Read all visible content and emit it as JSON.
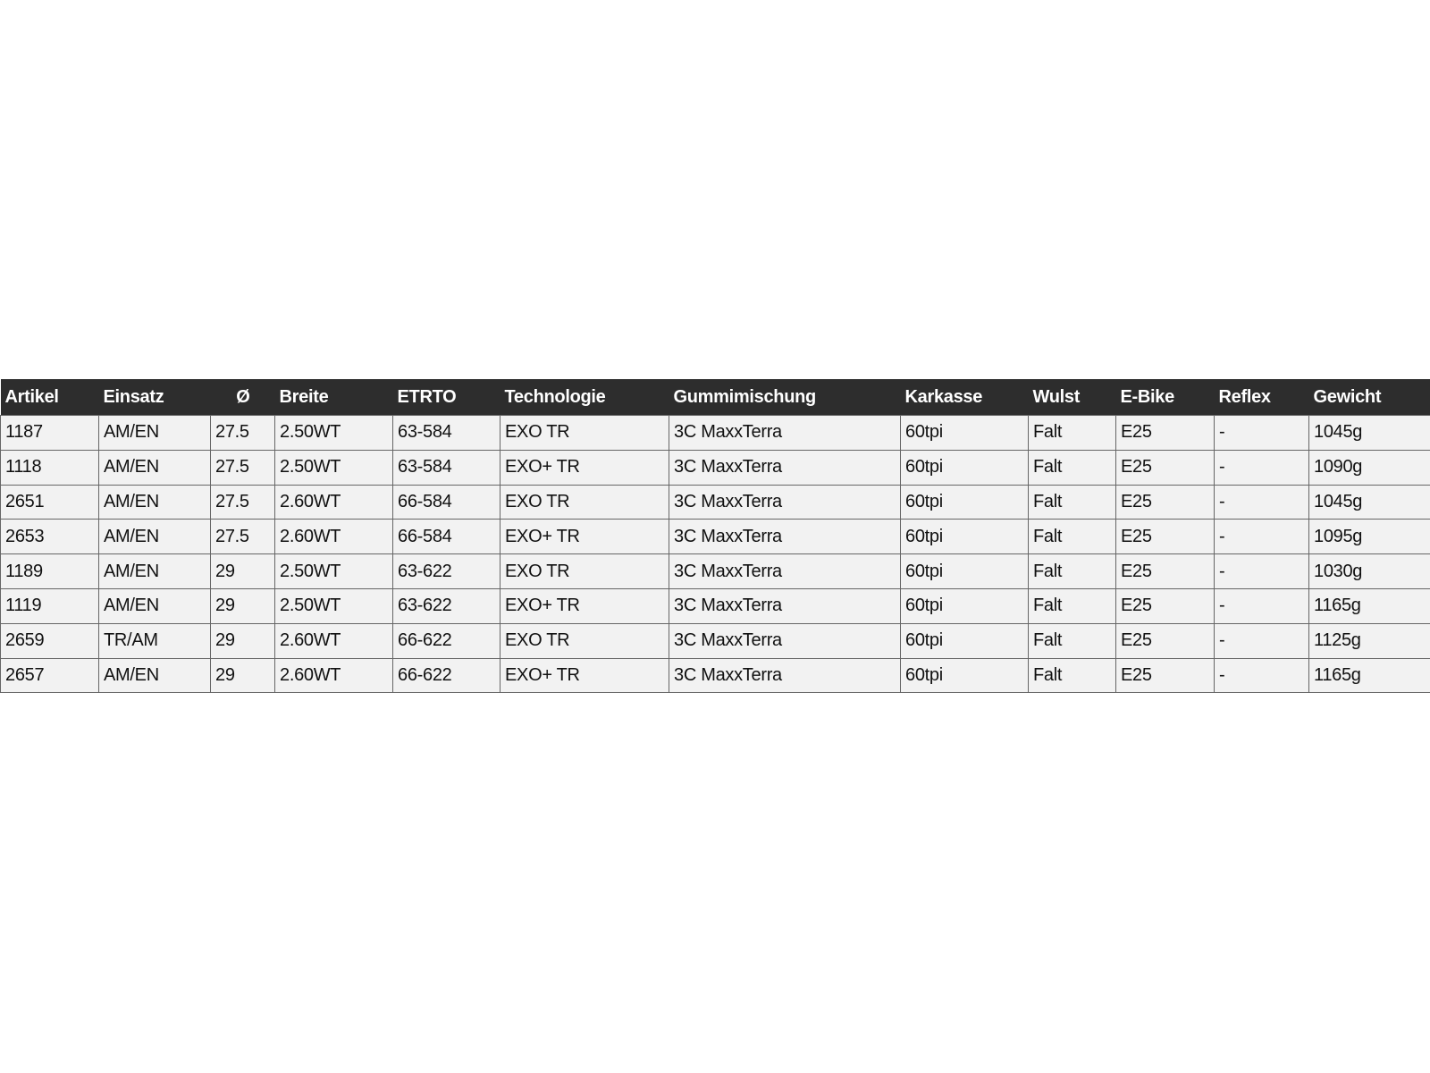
{
  "table": {
    "headers": [
      "Artikel",
      "Einsatz",
      "Ø",
      "Breite",
      "ETRTO",
      "Technologie",
      "Gummimischung",
      "Karkasse",
      "Wulst",
      "E-Bike",
      "Reflex",
      "Gewicht"
    ],
    "rows": [
      [
        "1187",
        "AM/EN",
        "27.5",
        "2.50WT",
        "63-584",
        "EXO TR",
        "3C MaxxTerra",
        "60tpi",
        "Falt",
        "E25",
        "-",
        "1045g"
      ],
      [
        "1118",
        "AM/EN",
        "27.5",
        "2.50WT",
        "63-584",
        "EXO+ TR",
        "3C MaxxTerra",
        "60tpi",
        "Falt",
        "E25",
        "-",
        "1090g"
      ],
      [
        "2651",
        "AM/EN",
        "27.5",
        "2.60WT",
        "66-584",
        "EXO TR",
        "3C MaxxTerra",
        "60tpi",
        "Falt",
        "E25",
        "-",
        "1045g"
      ],
      [
        "2653",
        "AM/EN",
        "27.5",
        "2.60WT",
        "66-584",
        "EXO+ TR",
        "3C MaxxTerra",
        "60tpi",
        "Falt",
        "E25",
        "-",
        "1095g"
      ],
      [
        "1189",
        "AM/EN",
        "29",
        "2.50WT",
        "63-622",
        "EXO TR",
        "3C MaxxTerra",
        "60tpi",
        "Falt",
        "E25",
        "-",
        "1030g"
      ],
      [
        "1119",
        "AM/EN",
        "29",
        "2.50WT",
        "63-622",
        "EXO+ TR",
        "3C MaxxTerra",
        "60tpi",
        "Falt",
        "E25",
        "-",
        "1165g"
      ],
      [
        "2659",
        "TR/AM",
        "29",
        "2.60WT",
        "66-622",
        "EXO TR",
        "3C MaxxTerra",
        "60tpi",
        "Falt",
        "E25",
        "-",
        "1125g"
      ],
      [
        "2657",
        "AM/EN",
        "29",
        "2.60WT",
        "66-622",
        "EXO+ TR",
        "3C MaxxTerra",
        "60tpi",
        "Falt",
        "E25",
        "-",
        "1165g"
      ]
    ]
  }
}
